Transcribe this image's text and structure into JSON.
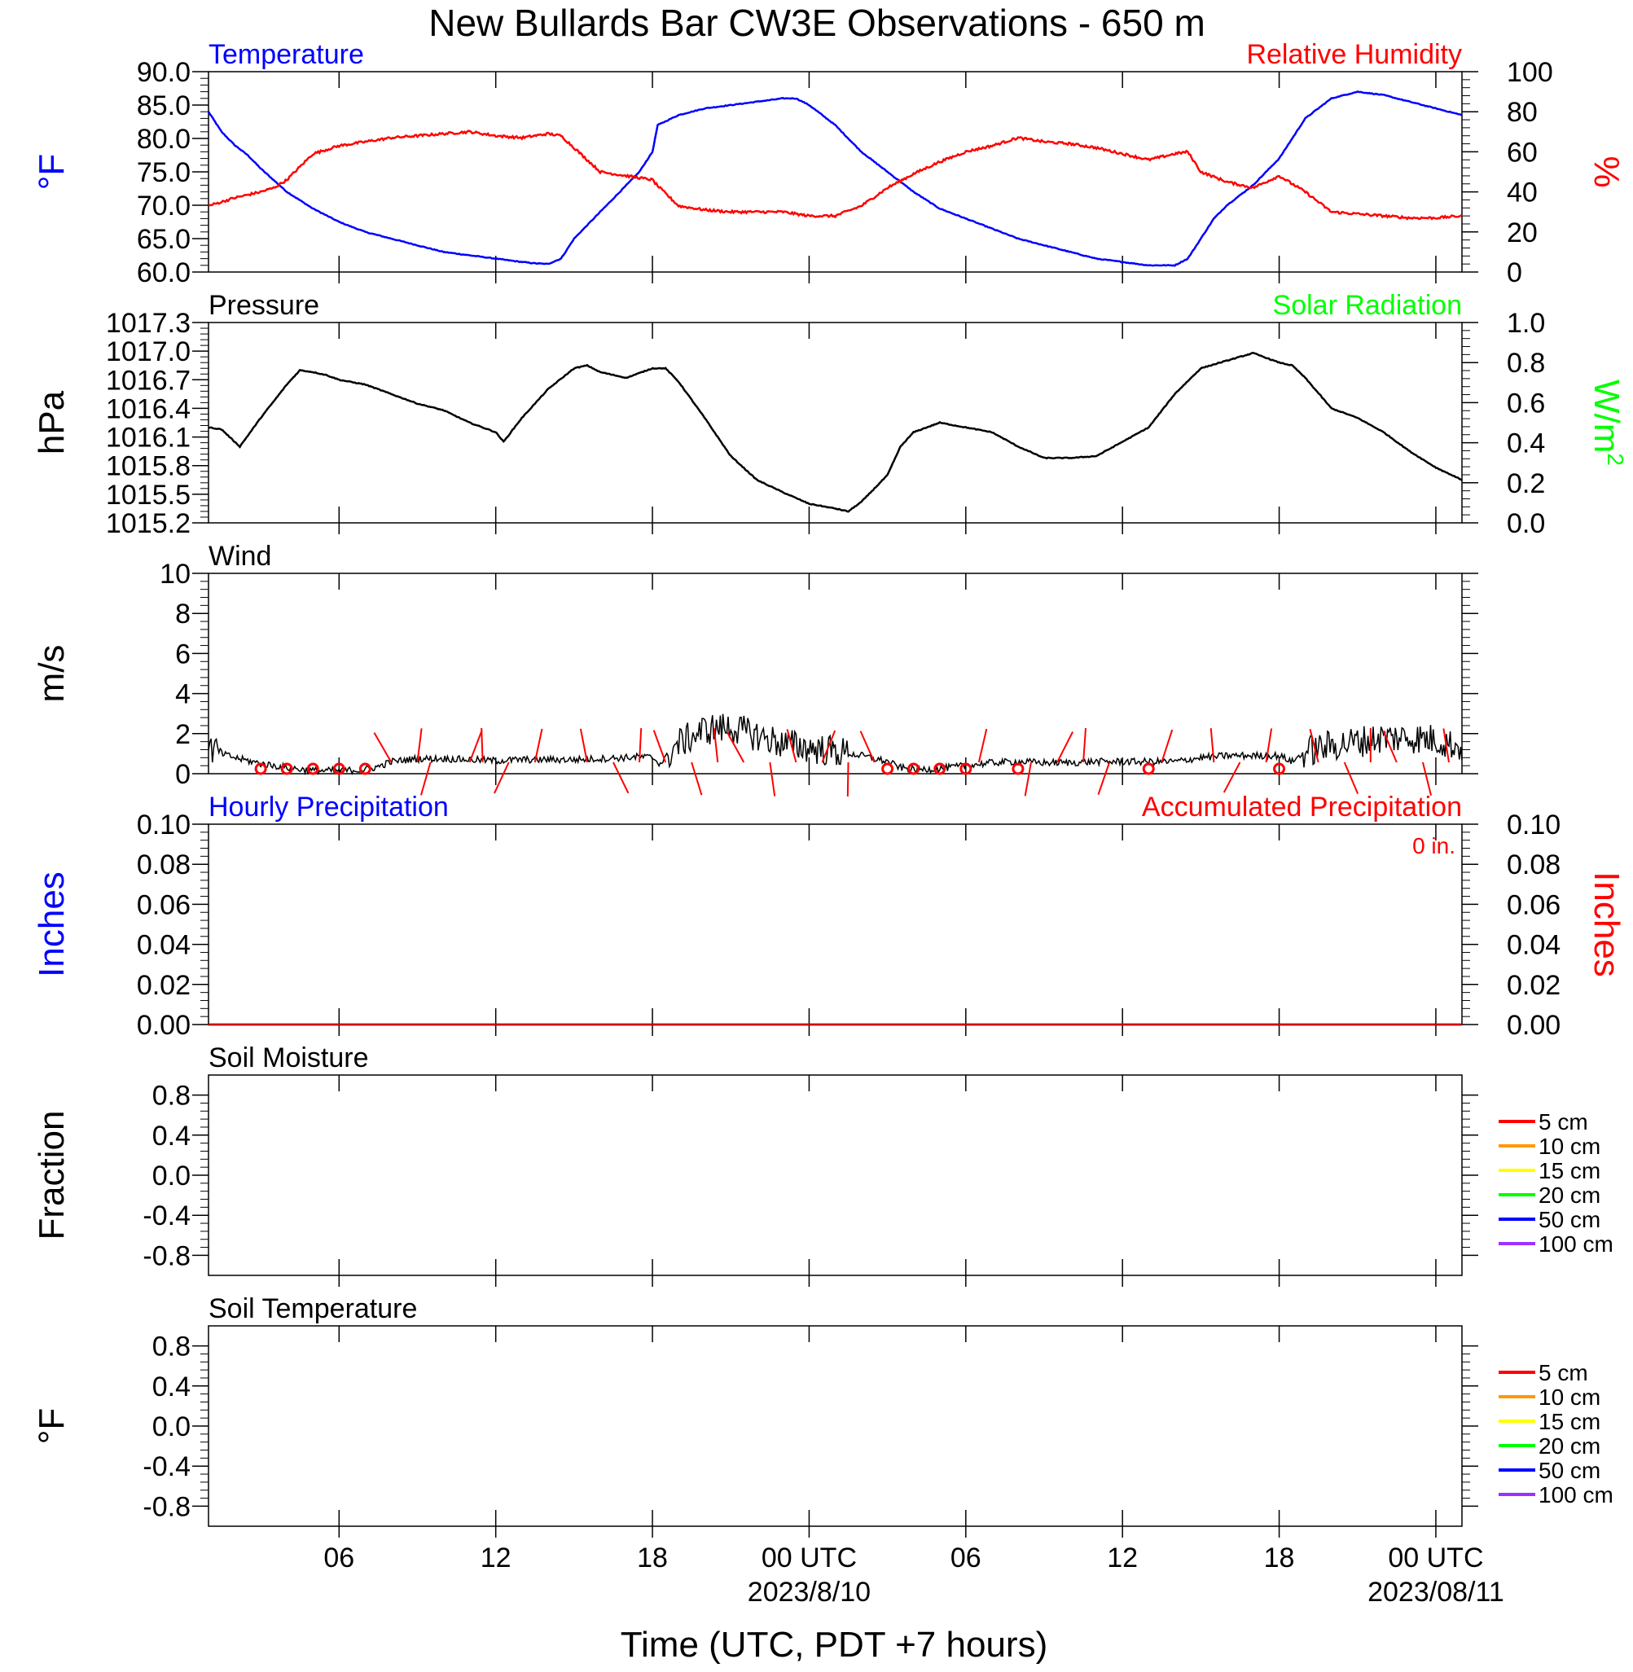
{
  "title": "New Bullards Bar CW3E Observations - 650 m",
  "time_axis": {
    "xlabel": "Time (UTC, PDT +7 hours)",
    "xlim_hours": [
      0,
      48
    ],
    "ticks": [
      {
        "hour": 5,
        "label": "06",
        "date": ""
      },
      {
        "hour": 11,
        "label": "12",
        "date": ""
      },
      {
        "hour": 17,
        "label": "18",
        "date": ""
      },
      {
        "hour": 23,
        "label": "00 UTC",
        "date": "2023/8/10"
      },
      {
        "hour": 29,
        "label": "06",
        "date": ""
      },
      {
        "hour": 35,
        "label": "12",
        "date": ""
      },
      {
        "hour": 41,
        "label": "18",
        "date": ""
      },
      {
        "hour": 47,
        "label": "00 UTC",
        "date": "2023/08/11"
      }
    ]
  },
  "chart_data": [
    {
      "id": "temp_rh",
      "type": "line",
      "left_title": "Temperature",
      "left_title_color": "#0000ff",
      "right_title": "Relative Humidity",
      "right_title_color": "#ff0000",
      "ylabel_left": "°F",
      "ylabel_left_color": "#0000ff",
      "ylabel_right": "%",
      "ylabel_right_color": "#ff0000",
      "ylim_left": [
        60,
        90
      ],
      "ylim_right": [
        0,
        100
      ],
      "yticks_left": [
        "90.0",
        "85.0",
        "80.0",
        "75.0",
        "70.0",
        "65.0",
        "60.0"
      ],
      "yticks_right": [
        "100",
        "80",
        "60",
        "40",
        "20",
        "0"
      ],
      "series": [
        {
          "axis": "left",
          "color": "#0000ff",
          "x": [
            0,
            0.5,
            1,
            1.5,
            2,
            3,
            4,
            5,
            6,
            7,
            8,
            9,
            10,
            11,
            12,
            12.5,
            13,
            13.5,
            14,
            15,
            16,
            16.5,
            17,
            17.2,
            18,
            19,
            20,
            21,
            22,
            22.5,
            23,
            24,
            25,
            26,
            27,
            28,
            29,
            30,
            31,
            32,
            33,
            34,
            35,
            36,
            37,
            37.5,
            38,
            38.5,
            39,
            40,
            41,
            41.5,
            42,
            43,
            44,
            45,
            46,
            47,
            48
          ],
          "y": [
            84,
            81,
            79,
            77.5,
            75.5,
            72,
            69.5,
            67.5,
            66,
            65,
            64,
            63,
            62.5,
            62,
            61.5,
            61.3,
            61.2,
            62,
            65,
            69,
            73,
            75,
            78,
            82,
            83.5,
            84.5,
            85,
            85.5,
            86,
            86,
            85,
            82,
            78,
            75,
            72,
            69.5,
            68,
            66.5,
            65,
            64,
            63,
            62,
            61.5,
            61,
            61,
            62,
            65,
            68,
            70,
            73,
            77,
            80,
            83,
            86,
            87,
            86.5,
            85.5,
            84.5,
            83.5
          ]
        },
        {
          "axis": "right",
          "color": "#ff0000",
          "x": [
            0,
            1,
            2,
            2.5,
            3,
            4,
            5,
            6,
            7,
            8,
            9,
            10,
            11,
            12,
            13,
            13.5,
            14,
            15,
            16,
            16.5,
            17,
            17.2,
            18,
            19,
            20,
            21,
            22,
            23,
            24,
            25,
            26,
            27,
            28,
            29,
            30,
            31,
            32,
            33,
            34,
            35,
            36,
            37,
            37.5,
            38,
            39,
            40,
            41,
            42,
            43,
            44,
            45,
            46,
            47,
            48
          ],
          "y": [
            33,
            37,
            40,
            42,
            46,
            59,
            63,
            65,
            67,
            68,
            69,
            70,
            68,
            67,
            69,
            68,
            62,
            50,
            48,
            47,
            46,
            43,
            33,
            31,
            30,
            30,
            30,
            28,
            28,
            33,
            42,
            49,
            55,
            60,
            63,
            67,
            65,
            64,
            62,
            59,
            56,
            59,
            60,
            50,
            45,
            42,
            48,
            40,
            30,
            29,
            28,
            27,
            27,
            28
          ]
        }
      ]
    },
    {
      "id": "pressure",
      "type": "line",
      "left_title": "Pressure",
      "left_title_color": "#000000",
      "right_title": "Solar Radiation",
      "right_title_color": "#00ff00",
      "ylabel_left": "hPa",
      "ylabel_left_color": "#000000",
      "ylabel_right": "W/m",
      "ylabel_right_sup": "2",
      "ylabel_right_color": "#00ff00",
      "ylim_left": [
        1015.2,
        1017.3
      ],
      "ylim_right": [
        0,
        1
      ],
      "yticks_left": [
        "1017.3",
        "1017.0",
        "1016.7",
        "1016.4",
        "1016.1",
        "1015.8",
        "1015.5",
        "1015.2"
      ],
      "yticks_right": [
        "1.0",
        "0.8",
        "0.6",
        "0.4",
        "0.2",
        "0.0"
      ],
      "series": [
        {
          "axis": "left",
          "color": "#000000",
          "x": [
            0,
            0.5,
            1,
            1.2,
            2,
            3,
            3.5,
            4,
            4.5,
            5,
            6,
            7,
            8,
            9,
            10,
            11,
            11.3,
            12,
            13,
            14,
            14.5,
            15,
            16,
            17,
            17.5,
            18,
            19,
            20,
            21,
            22,
            23,
            24,
            24.5,
            25,
            26,
            26.5,
            27,
            28,
            29,
            30,
            31,
            32,
            33,
            34,
            35,
            36,
            37,
            38,
            39,
            40,
            41,
            41.5,
            42,
            43,
            44,
            45,
            46,
            47,
            48
          ],
          "y": [
            1016.2,
            1016.18,
            1016.05,
            1016.0,
            1016.3,
            1016.65,
            1016.8,
            1016.78,
            1016.75,
            1016.7,
            1016.65,
            1016.55,
            1016.45,
            1016.38,
            1016.25,
            1016.15,
            1016.05,
            1016.3,
            1016.6,
            1016.82,
            1016.85,
            1016.78,
            1016.72,
            1016.82,
            1016.82,
            1016.68,
            1016.3,
            1015.9,
            1015.65,
            1015.52,
            1015.4,
            1015.35,
            1015.32,
            1015.42,
            1015.7,
            1016.0,
            1016.15,
            1016.25,
            1016.2,
            1016.15,
            1016.0,
            1015.88,
            1015.88,
            1015.9,
            1016.05,
            1016.2,
            1016.55,
            1016.82,
            1016.9,
            1016.98,
            1016.88,
            1016.85,
            1016.72,
            1016.4,
            1016.3,
            1016.15,
            1015.95,
            1015.78,
            1015.65
          ]
        }
      ]
    },
    {
      "id": "wind",
      "type": "line",
      "left_title": "Wind",
      "left_title_color": "#000000",
      "ylabel_left": "m/s",
      "ylim_left": [
        0,
        10
      ],
      "yticks_left": [
        "10",
        "8",
        "6",
        "4",
        "2",
        "0"
      ],
      "series": [
        {
          "axis": "left",
          "color": "#000000",
          "x": [
            0,
            0.5,
            1,
            2,
            3,
            4,
            5,
            6,
            6.5,
            7,
            8,
            9,
            10,
            11,
            12,
            13,
            14,
            15,
            16,
            16.5,
            17,
            17.3,
            18,
            19,
            20,
            21,
            22,
            23,
            24,
            25,
            26,
            26.5,
            27,
            28,
            29,
            30,
            31,
            32,
            33,
            34,
            35,
            36,
            37,
            38,
            39,
            40,
            41,
            41.5,
            42,
            43,
            44,
            45,
            46,
            47,
            48
          ],
          "y": [
            1.3,
            1.0,
            0.8,
            0.5,
            0.3,
            0.15,
            0.15,
            0.2,
            0.35,
            0.6,
            0.75,
            0.75,
            0.7,
            0.65,
            0.7,
            0.7,
            0.7,
            0.75,
            0.8,
            0.85,
            0.8,
            0.5,
            1.5,
            2.2,
            2.3,
            1.9,
            1.5,
            1.3,
            1.1,
            0.9,
            0.6,
            0.3,
            0.2,
            0.25,
            0.4,
            0.55,
            0.6,
            0.55,
            0.55,
            0.6,
            0.6,
            0.6,
            0.6,
            0.8,
            0.9,
            0.9,
            0.9,
            0.6,
            1.1,
            1.4,
            1.6,
            1.8,
            1.8,
            1.7,
            1.3
          ]
        }
      ],
      "calm_markers_hours": [
        2,
        3,
        4,
        5,
        6,
        26,
        27,
        28,
        29,
        31,
        36,
        41
      ],
      "barb_hours": [
        7,
        8,
        8.5,
        10,
        10.5,
        11.5,
        12.5,
        14.5,
        15.5,
        16.5,
        17.5,
        18.5,
        19.5,
        20.5,
        21.5,
        22.5,
        23.5,
        24.5,
        25.5,
        29.5,
        31.5,
        32.5,
        33.5,
        34.5,
        36.5,
        38.5,
        39.5,
        40.5,
        42.5,
        43.5,
        44.5,
        45.5,
        46.5,
        47.5
      ],
      "barb_color": "#ff0000"
    },
    {
      "id": "precip",
      "type": "line",
      "left_title": "Hourly Precipitation",
      "left_title_color": "#0000ff",
      "right_title": "Accumulated Precipitation",
      "right_title_color": "#ff0000",
      "annotation": "0 in.",
      "ylabel_left": "Inches",
      "ylabel_left_color": "#0000ff",
      "ylabel_right": "Inches",
      "ylabel_right_color": "#ff0000",
      "ylim_left": [
        0,
        0.1
      ],
      "ylim_right": [
        0,
        0.1
      ],
      "yticks_left": [
        "0.10",
        "0.08",
        "0.06",
        "0.04",
        "0.02",
        "0.00"
      ],
      "yticks_right": [
        "0.10",
        "0.08",
        "0.06",
        "0.04",
        "0.02",
        "0.00"
      ],
      "series": [
        {
          "axis": "left",
          "color": "#0000ff",
          "x": [
            0,
            48
          ],
          "y": [
            0,
            0
          ]
        },
        {
          "axis": "right",
          "color": "#cc0000",
          "x": [
            0,
            48
          ],
          "y": [
            0,
            0
          ]
        }
      ]
    },
    {
      "id": "soil_moisture",
      "type": "line",
      "left_title": "Soil Moisture",
      "left_title_color": "#000000",
      "ylabel_left": "Fraction",
      "ylim_left": [
        -1,
        1
      ],
      "yticks_left": [
        "0.8",
        "0.4",
        "0.0",
        "-0.4",
        "-0.8"
      ],
      "legend": [
        {
          "name": "5 cm",
          "color": "#ff0000"
        },
        {
          "name": "10 cm",
          "color": "#ff9900"
        },
        {
          "name": "15 cm",
          "color": "#ffff00"
        },
        {
          "name": "20 cm",
          "color": "#00ff00"
        },
        {
          "name": "50 cm",
          "color": "#0000ff"
        },
        {
          "name": "100 cm",
          "color": "#9933ff"
        }
      ],
      "legend_placement": "right",
      "series": []
    },
    {
      "id": "soil_temp",
      "type": "line",
      "left_title": "Soil Temperature",
      "left_title_color": "#000000",
      "ylabel_left": "°F",
      "ylim_left": [
        -1,
        1
      ],
      "yticks_left": [
        "0.8",
        "0.4",
        "0.0",
        "-0.4",
        "-0.8"
      ],
      "legend": [
        {
          "name": "5 cm",
          "color": "#ff0000"
        },
        {
          "name": "10 cm",
          "color": "#ff9900"
        },
        {
          "name": "15 cm",
          "color": "#ffff00"
        },
        {
          "name": "20 cm",
          "color": "#00ff00"
        },
        {
          "name": "50 cm",
          "color": "#0000ff"
        },
        {
          "name": "100 cm",
          "color": "#9933ff"
        }
      ],
      "legend_placement": "right",
      "series": []
    }
  ]
}
